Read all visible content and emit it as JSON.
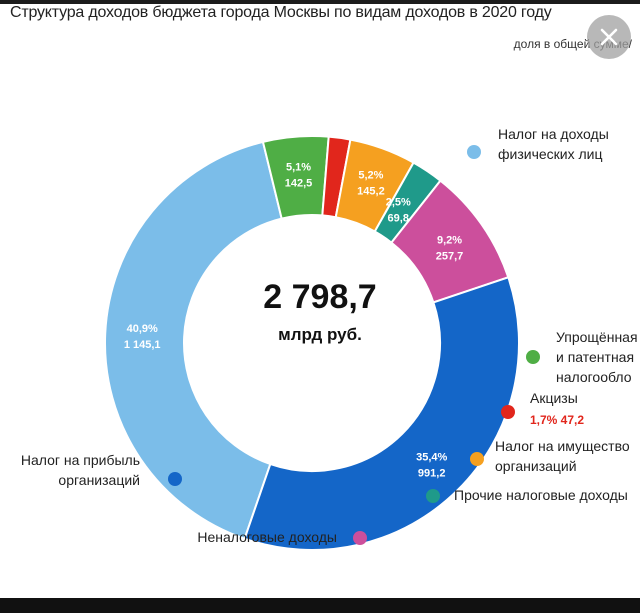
{
  "title": "Структура доходов бюджета города Москвы по видам доходов в 2020 году",
  "subtitle": "доля в общей сумме/",
  "close_icon": "close-icon",
  "chart_data": {
    "type": "pie",
    "variant": "donut",
    "title": "Структура доходов бюджета города Москвы по видам доходов в 2020 году",
    "subtitle": "доля в общей сумме/",
    "center_total": "2 798,7",
    "center_unit": "млрд руб.",
    "total": 2798.7,
    "slices": [
      {
        "name": "Налог на доходы физических лиц",
        "legend_lines": [
          "Налог на доходы",
          "физических лиц"
        ],
        "percent": 40.9,
        "percent_label": "40,9%",
        "value": 1145.1,
        "value_label": "1 145,1",
        "color": "#7bbde9"
      },
      {
        "name": "Упрощённая и патентная налогообл",
        "legend_lines": [
          "Упрощённая",
          "и патентная",
          "налогообло"
        ],
        "percent": 5.1,
        "percent_label": "5,1%",
        "value": 142.5,
        "value_label": "142,5",
        "color": "#4fae45"
      },
      {
        "name": "Акцизы",
        "legend_lines": [
          "Акцизы"
        ],
        "percent": 1.7,
        "percent_label": "1,7%",
        "value": 47.2,
        "value_label": "47,2",
        "color": "#e1261c"
      },
      {
        "name": "Налог на имущество организаций",
        "legend_lines": [
          "Налог на имущество",
          "организаций"
        ],
        "percent": 5.2,
        "percent_label": "5,2%",
        "value": 145.2,
        "value_label": "145,2",
        "color": "#f5a020"
      },
      {
        "name": "Прочие налоговые доходы",
        "legend_lines": [
          "Прочие налоговые доходы"
        ],
        "percent": 2.5,
        "percent_label": "2,5%",
        "value": 69.8,
        "value_label": "69,8",
        "color": "#1f9a8a"
      },
      {
        "name": "Неналоговые доходы",
        "legend_lines": [
          "Неналоговые доходы"
        ],
        "percent": 9.2,
        "percent_label": "9,2%",
        "value": 257.7,
        "value_label": "257,7",
        "color": "#cc4f9c"
      },
      {
        "name": "Налог на прибыль организаций",
        "legend_lines": [
          "Налог на прибыль",
          "организаций"
        ],
        "percent": 35.4,
        "percent_label": "35,4%",
        "value": 991.2,
        "value_label": "991,2",
        "color": "#1466c8"
      }
    ]
  }
}
